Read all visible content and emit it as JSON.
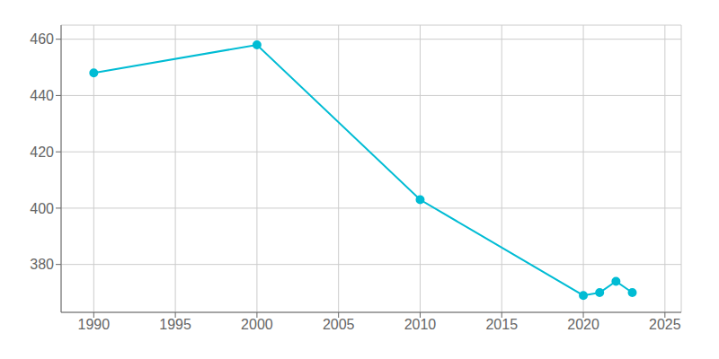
{
  "chart_data": {
    "type": "line",
    "x": [
      1990,
      2000,
      2010,
      2020,
      2021,
      2022,
      2023
    ],
    "values": [
      448,
      458,
      403,
      369,
      370,
      374,
      370
    ],
    "color": "#00bcd4",
    "marker": "circle",
    "xlim": [
      1988,
      2026
    ],
    "ylim": [
      363,
      465
    ],
    "xticks": [
      1990,
      1995,
      2000,
      2005,
      2010,
      2015,
      2020,
      2025
    ],
    "yticks": [
      380,
      400,
      420,
      440,
      460
    ],
    "grid": true
  }
}
